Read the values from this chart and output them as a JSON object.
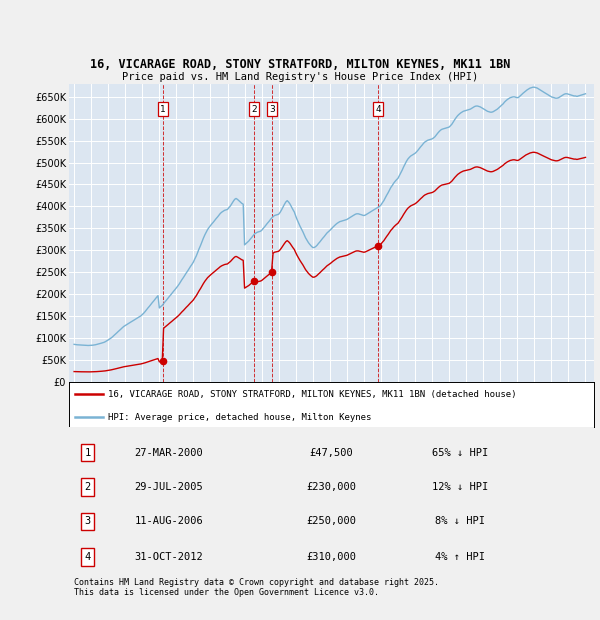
{
  "title": "16, VICARAGE ROAD, STONY STRATFORD, MILTON KEYNES, MK11 1BN",
  "subtitle": "Price paid vs. HM Land Registry's House Price Index (HPI)",
  "ylim": [
    0,
    680000
  ],
  "yticks": [
    0,
    50000,
    100000,
    150000,
    200000,
    250000,
    300000,
    350000,
    400000,
    450000,
    500000,
    550000,
    600000,
    650000
  ],
  "ytick_labels": [
    "£0",
    "£50K",
    "£100K",
    "£150K",
    "£200K",
    "£250K",
    "£300K",
    "£350K",
    "£400K",
    "£450K",
    "£500K",
    "£550K",
    "£600K",
    "£650K"
  ],
  "xlim_start": 1994.7,
  "xlim_end": 2025.5,
  "plot_bg_color": "#dce6f1",
  "fig_bg_color": "#f0f0f0",
  "grid_color": "#ffffff",
  "red_line_color": "#cc0000",
  "blue_line_color": "#7ab3d4",
  "transactions": [
    {
      "num": 1,
      "date": "27-MAR-2000",
      "year": 2000.23,
      "price": 47500,
      "pct": "65%",
      "dir": "↓"
    },
    {
      "num": 2,
      "date": "29-JUL-2005",
      "year": 2005.57,
      "price": 230000,
      "pct": "12%",
      "dir": "↓"
    },
    {
      "num": 3,
      "date": "11-AUG-2006",
      "year": 2006.61,
      "price": 250000,
      "pct": "8%",
      "dir": "↓"
    },
    {
      "num": 4,
      "date": "31-OCT-2012",
      "year": 2012.83,
      "price": 310000,
      "pct": "4%",
      "dir": "↑"
    }
  ],
  "legend_label_red": "16, VICARAGE ROAD, STONY STRATFORD, MILTON KEYNES, MK11 1BN (detached house)",
  "legend_label_blue": "HPI: Average price, detached house, Milton Keynes",
  "footer": "Contains HM Land Registry data © Crown copyright and database right 2025.\nThis data is licensed under the Open Government Licence v3.0.",
  "hpi_data": {
    "years": [
      1995.0,
      1995.08,
      1995.17,
      1995.25,
      1995.33,
      1995.42,
      1995.5,
      1995.58,
      1995.67,
      1995.75,
      1995.83,
      1995.92,
      1996.0,
      1996.08,
      1996.17,
      1996.25,
      1996.33,
      1996.42,
      1996.5,
      1996.58,
      1996.67,
      1996.75,
      1996.83,
      1996.92,
      1997.0,
      1997.08,
      1997.17,
      1997.25,
      1997.33,
      1997.42,
      1997.5,
      1997.58,
      1997.67,
      1997.75,
      1997.83,
      1997.92,
      1998.0,
      1998.08,
      1998.17,
      1998.25,
      1998.33,
      1998.42,
      1998.5,
      1998.58,
      1998.67,
      1998.75,
      1998.83,
      1998.92,
      1999.0,
      1999.08,
      1999.17,
      1999.25,
      1999.33,
      1999.42,
      1999.5,
      1999.58,
      1999.67,
      1999.75,
      1999.83,
      1999.92,
      2000.0,
      2000.08,
      2000.17,
      2000.25,
      2000.33,
      2000.42,
      2000.5,
      2000.58,
      2000.67,
      2000.75,
      2000.83,
      2000.92,
      2001.0,
      2001.08,
      2001.17,
      2001.25,
      2001.33,
      2001.42,
      2001.5,
      2001.58,
      2001.67,
      2001.75,
      2001.83,
      2001.92,
      2002.0,
      2002.08,
      2002.17,
      2002.25,
      2002.33,
      2002.42,
      2002.5,
      2002.58,
      2002.67,
      2002.75,
      2002.83,
      2002.92,
      2003.0,
      2003.08,
      2003.17,
      2003.25,
      2003.33,
      2003.42,
      2003.5,
      2003.58,
      2003.67,
      2003.75,
      2003.83,
      2003.92,
      2004.0,
      2004.08,
      2004.17,
      2004.25,
      2004.33,
      2004.42,
      2004.5,
      2004.58,
      2004.67,
      2004.75,
      2004.83,
      2004.92,
      2005.0,
      2005.08,
      2005.17,
      2005.25,
      2005.33,
      2005.42,
      2005.5,
      2005.58,
      2005.67,
      2005.75,
      2005.83,
      2005.92,
      2006.0,
      2006.08,
      2006.17,
      2006.25,
      2006.33,
      2006.42,
      2006.5,
      2006.58,
      2006.67,
      2006.75,
      2006.83,
      2006.92,
      2007.0,
      2007.08,
      2007.17,
      2007.25,
      2007.33,
      2007.42,
      2007.5,
      2007.58,
      2007.67,
      2007.75,
      2007.83,
      2007.92,
      2008.0,
      2008.08,
      2008.17,
      2008.25,
      2008.33,
      2008.42,
      2008.5,
      2008.58,
      2008.67,
      2008.75,
      2008.83,
      2008.92,
      2009.0,
      2009.08,
      2009.17,
      2009.25,
      2009.33,
      2009.42,
      2009.5,
      2009.58,
      2009.67,
      2009.75,
      2009.83,
      2009.92,
      2010.0,
      2010.08,
      2010.17,
      2010.25,
      2010.33,
      2010.42,
      2010.5,
      2010.58,
      2010.67,
      2010.75,
      2010.83,
      2010.92,
      2011.0,
      2011.08,
      2011.17,
      2011.25,
      2011.33,
      2011.42,
      2011.5,
      2011.58,
      2011.67,
      2011.75,
      2011.83,
      2011.92,
      2012.0,
      2012.08,
      2012.17,
      2012.25,
      2012.33,
      2012.42,
      2012.5,
      2012.58,
      2012.67,
      2012.75,
      2012.83,
      2012.92,
      2013.0,
      2013.08,
      2013.17,
      2013.25,
      2013.33,
      2013.42,
      2013.5,
      2013.58,
      2013.67,
      2013.75,
      2013.83,
      2013.92,
      2014.0,
      2014.08,
      2014.17,
      2014.25,
      2014.33,
      2014.42,
      2014.5,
      2014.58,
      2014.67,
      2014.75,
      2014.83,
      2014.92,
      2015.0,
      2015.08,
      2015.17,
      2015.25,
      2015.33,
      2015.42,
      2015.5,
      2015.58,
      2015.67,
      2015.75,
      2015.83,
      2015.92,
      2016.0,
      2016.08,
      2016.17,
      2016.25,
      2016.33,
      2016.42,
      2016.5,
      2016.58,
      2016.67,
      2016.75,
      2016.83,
      2016.92,
      2017.0,
      2017.08,
      2017.17,
      2017.25,
      2017.33,
      2017.42,
      2017.5,
      2017.58,
      2017.67,
      2017.75,
      2017.83,
      2017.92,
      2018.0,
      2018.08,
      2018.17,
      2018.25,
      2018.33,
      2018.42,
      2018.5,
      2018.58,
      2018.67,
      2018.75,
      2018.83,
      2018.92,
      2019.0,
      2019.08,
      2019.17,
      2019.25,
      2019.33,
      2019.42,
      2019.5,
      2019.58,
      2019.67,
      2019.75,
      2019.83,
      2019.92,
      2020.0,
      2020.08,
      2020.17,
      2020.25,
      2020.33,
      2020.42,
      2020.5,
      2020.58,
      2020.67,
      2020.75,
      2020.83,
      2020.92,
      2021.0,
      2021.08,
      2021.17,
      2021.25,
      2021.33,
      2021.42,
      2021.5,
      2021.58,
      2021.67,
      2021.75,
      2021.83,
      2021.92,
      2022.0,
      2022.08,
      2022.17,
      2022.25,
      2022.33,
      2022.42,
      2022.5,
      2022.58,
      2022.67,
      2022.75,
      2022.83,
      2022.92,
      2023.0,
      2023.08,
      2023.17,
      2023.25,
      2023.33,
      2023.42,
      2023.5,
      2023.58,
      2023.67,
      2023.75,
      2023.83,
      2023.92,
      2024.0,
      2024.08,
      2024.17,
      2024.25,
      2024.33,
      2024.42,
      2024.5,
      2024.58,
      2024.67,
      2024.75,
      2024.83,
      2024.92,
      2025.0
    ],
    "values": [
      85000,
      84500,
      84000,
      83800,
      83500,
      83200,
      83000,
      82800,
      82600,
      82500,
      82400,
      82500,
      82800,
      83000,
      83500,
      84000,
      84800,
      85500,
      86500,
      87500,
      88500,
      89500,
      91000,
      93000,
      95000,
      97000,
      99500,
      102000,
      105000,
      108000,
      111000,
      114000,
      117000,
      120000,
      123000,
      126000,
      128000,
      130000,
      132000,
      134000,
      136000,
      138000,
      140000,
      142000,
      144000,
      146000,
      148000,
      150000,
      153000,
      156000,
      160000,
      164000,
      168000,
      172000,
      176000,
      180000,
      184000,
      188000,
      192000,
      196000,
      168000,
      171000,
      174000,
      178000,
      182000,
      186000,
      190000,
      194000,
      198000,
      202000,
      206000,
      210000,
      214000,
      218000,
      223000,
      228000,
      233000,
      238000,
      243000,
      248000,
      253000,
      258000,
      263000,
      268000,
      273000,
      280000,
      287000,
      295000,
      303000,
      311000,
      319000,
      327000,
      335000,
      341000,
      347000,
      352000,
      356000,
      360000,
      364000,
      368000,
      372000,
      376000,
      380000,
      384000,
      387000,
      389000,
      391000,
      392000,
      393000,
      397000,
      401000,
      406000,
      411000,
      416000,
      418000,
      416000,
      413000,
      410000,
      407000,
      405000,
      312000,
      315000,
      318000,
      321000,
      325000,
      329000,
      333000,
      337000,
      339000,
      341000,
      342000,
      343000,
      345000,
      349000,
      353000,
      357000,
      361000,
      365000,
      369000,
      373000,
      376000,
      379000,
      380000,
      381000,
      382000,
      386000,
      392000,
      398000,
      404000,
      410000,
      413000,
      410000,
      405000,
      399000,
      393000,
      387000,
      378000,
      370000,
      362000,
      355000,
      349000,
      342000,
      335000,
      328000,
      322000,
      317000,
      313000,
      309000,
      306000,
      306000,
      308000,
      311000,
      315000,
      319000,
      323000,
      327000,
      331000,
      335000,
      339000,
      342000,
      345000,
      348000,
      352000,
      355000,
      358000,
      361000,
      363000,
      365000,
      366000,
      367000,
      368000,
      369000,
      370000,
      372000,
      374000,
      376000,
      378000,
      380000,
      382000,
      383000,
      383000,
      382000,
      381000,
      380000,
      379000,
      380000,
      382000,
      384000,
      386000,
      388000,
      390000,
      392000,
      394000,
      396000,
      398000,
      400000,
      403000,
      408000,
      413000,
      419000,
      425000,
      431000,
      437000,
      443000,
      448000,
      453000,
      457000,
      461000,
      464000,
      470000,
      477000,
      483000,
      490000,
      497000,
      503000,
      508000,
      512000,
      515000,
      517000,
      519000,
      521000,
      524000,
      528000,
      532000,
      536000,
      540000,
      544000,
      547000,
      549000,
      551000,
      552000,
      553000,
      554000,
      556000,
      559000,
      563000,
      567000,
      571000,
      574000,
      576000,
      577000,
      578000,
      579000,
      580000,
      581000,
      584000,
      588000,
      593000,
      598000,
      603000,
      607000,
      610000,
      613000,
      615000,
      617000,
      618000,
      619000,
      620000,
      621000,
      622000,
      624000,
      626000,
      628000,
      629000,
      629000,
      628000,
      627000,
      625000,
      623000,
      621000,
      619000,
      617000,
      616000,
      615000,
      615000,
      616000,
      618000,
      620000,
      622000,
      625000,
      628000,
      631000,
      634000,
      638000,
      641000,
      644000,
      646000,
      648000,
      649000,
      650000,
      650000,
      649000,
      648000,
      649000,
      652000,
      655000,
      658000,
      661000,
      664000,
      666000,
      668000,
      670000,
      671000,
      672000,
      672000,
      671000,
      670000,
      668000,
      666000,
      664000,
      662000,
      660000,
      658000,
      656000,
      654000,
      652000,
      650000,
      649000,
      648000,
      647000,
      647000,
      648000,
      650000,
      652000,
      654000,
      656000,
      657000,
      657000,
      656000,
      655000,
      654000,
      653000,
      652000,
      652000,
      651000,
      652000,
      653000,
      654000,
      655000,
      656000,
      657000
    ]
  }
}
